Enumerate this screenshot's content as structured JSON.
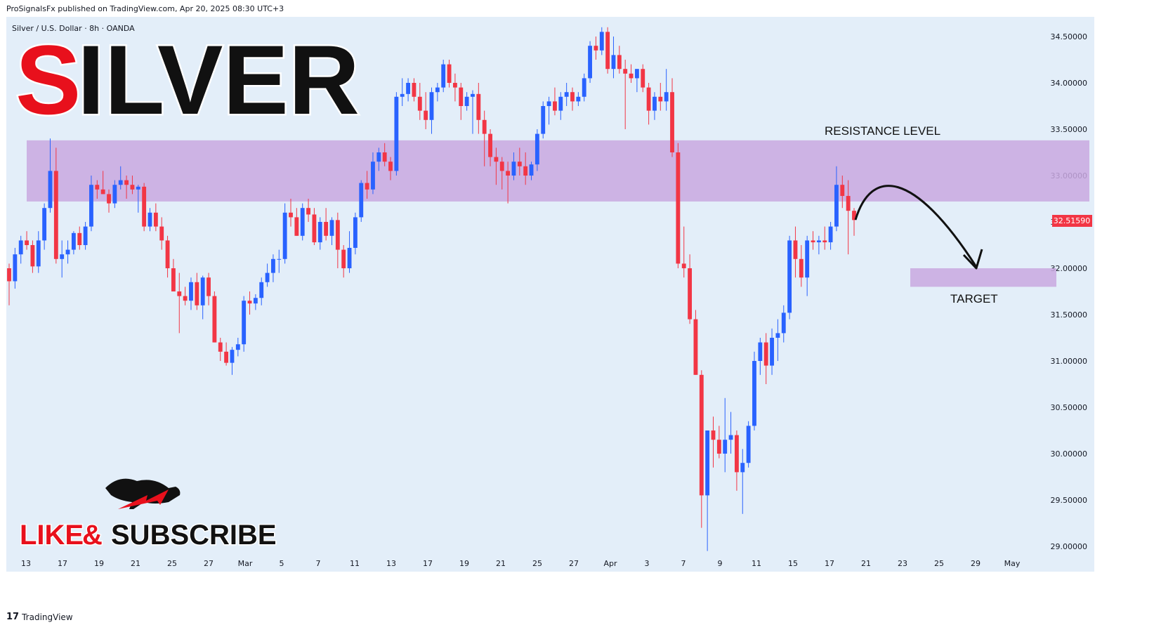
{
  "header": {
    "published": "ProSignalsFx published on TradingView.com, Apr 20, 2025 08:30 UTC+3"
  },
  "symbol_line": "Silver / U.S. Dollar · 8h · OANDA",
  "big_title": {
    "first_letter": "S",
    "rest": "ILVER"
  },
  "promo": {
    "like": "LIKE",
    "amp": "&",
    "subscribe": "SUBSCRIBE"
  },
  "footer": {
    "brand": "TradingView",
    "logo_glyph": "17"
  },
  "annotations": {
    "resistance": "RESISTANCE LEVEL",
    "target": "TARGET"
  },
  "colors": {
    "background": "#e3eef9",
    "up": "#2962ff",
    "down": "#f23645",
    "zone": "#c9a8e0",
    "price_label": "#f23645",
    "title_red": "#e8101c",
    "title_black": "#111111"
  },
  "chart_data": {
    "type": "candlestick",
    "title": "Silver / U.S. Dollar · 8h · OANDA",
    "y_ticks": [
      "34.50000",
      "34.00000",
      "33.50000",
      "33.00000",
      "32.50000",
      "32.00000",
      "31.50000",
      "31.00000",
      "30.50000",
      "30.00000",
      "29.50000",
      "29.00000"
    ],
    "ylim": [
      28.75,
      34.75
    ],
    "x_ticks": [
      "13",
      "17",
      "19",
      "21",
      "25",
      "27",
      "Mar",
      "5",
      "7",
      "11",
      "13",
      "17",
      "19",
      "21",
      "25",
      "27",
      "Apr",
      "3",
      "7",
      "9",
      "11",
      "15",
      "17",
      "21",
      "23",
      "25",
      "29",
      "May"
    ],
    "current_price": "32.51590",
    "resistance_zone": [
      32.72,
      33.38
    ],
    "target_zone": [
      31.8,
      32.0
    ],
    "candles": [
      [
        32.0,
        32.05,
        31.6,
        31.86
      ],
      [
        31.86,
        32.22,
        31.78,
        32.15
      ],
      [
        32.15,
        32.35,
        32.05,
        32.3
      ],
      [
        32.3,
        32.4,
        32.2,
        32.25
      ],
      [
        32.25,
        32.3,
        31.95,
        32.02
      ],
      [
        32.02,
        32.4,
        31.95,
        32.3
      ],
      [
        32.3,
        32.7,
        32.2,
        32.65
      ],
      [
        32.65,
        33.4,
        32.6,
        33.05
      ],
      [
        33.05,
        33.3,
        32.05,
        32.1
      ],
      [
        32.1,
        32.3,
        31.9,
        32.15
      ],
      [
        32.15,
        32.3,
        32.05,
        32.2
      ],
      [
        32.2,
        32.4,
        32.15,
        32.38
      ],
      [
        32.38,
        32.45,
        32.2,
        32.25
      ],
      [
        32.25,
        32.5,
        32.2,
        32.45
      ],
      [
        32.45,
        33.0,
        32.4,
        32.9
      ],
      [
        32.9,
        32.95,
        32.75,
        32.85
      ],
      [
        32.85,
        33.05,
        32.8,
        32.8
      ],
      [
        32.8,
        32.85,
        32.6,
        32.7
      ],
      [
        32.7,
        32.95,
        32.65,
        32.9
      ],
      [
        32.9,
        33.1,
        32.85,
        32.95
      ],
      [
        32.95,
        33.0,
        32.75,
        32.9
      ],
      [
        32.9,
        33.0,
        32.8,
        32.85
      ],
      [
        32.85,
        32.9,
        32.6,
        32.88
      ],
      [
        32.88,
        32.92,
        32.4,
        32.45
      ],
      [
        32.45,
        32.65,
        32.4,
        32.6
      ],
      [
        32.6,
        32.7,
        32.4,
        32.45
      ],
      [
        32.45,
        32.55,
        32.2,
        32.3
      ],
      [
        32.3,
        32.35,
        31.9,
        32.0
      ],
      [
        32.0,
        32.1,
        31.8,
        31.75
      ],
      [
        31.75,
        31.95,
        31.3,
        31.7
      ],
      [
        31.7,
        31.8,
        31.6,
        31.65
      ],
      [
        31.65,
        31.9,
        31.55,
        31.85
      ],
      [
        31.85,
        31.95,
        31.55,
        31.6
      ],
      [
        31.6,
        31.92,
        31.45,
        31.9
      ],
      [
        31.9,
        31.95,
        31.6,
        31.7
      ],
      [
        31.7,
        31.75,
        31.2,
        31.2
      ],
      [
        31.2,
        31.25,
        31.0,
        31.1
      ],
      [
        31.1,
        31.2,
        30.95,
        30.98
      ],
      [
        30.98,
        31.15,
        30.85,
        31.12
      ],
      [
        31.12,
        31.25,
        31.05,
        31.18
      ],
      [
        31.18,
        31.7,
        31.1,
        31.65
      ],
      [
        31.65,
        31.75,
        31.5,
        31.62
      ],
      [
        31.62,
        31.72,
        31.55,
        31.68
      ],
      [
        31.68,
        31.9,
        31.6,
        31.85
      ],
      [
        31.85,
        32.05,
        31.8,
        31.95
      ],
      [
        31.95,
        32.15,
        31.85,
        32.1
      ],
      [
        32.1,
        32.2,
        31.95,
        32.1
      ],
      [
        32.1,
        32.7,
        32.05,
        32.6
      ],
      [
        32.6,
        32.75,
        32.45,
        32.55
      ],
      [
        32.55,
        32.65,
        32.35,
        32.35
      ],
      [
        32.35,
        32.7,
        32.3,
        32.65
      ],
      [
        32.65,
        32.75,
        32.5,
        32.58
      ],
      [
        32.58,
        32.65,
        32.25,
        32.28
      ],
      [
        32.28,
        32.55,
        32.2,
        32.5
      ],
      [
        32.5,
        32.65,
        32.3,
        32.35
      ],
      [
        32.35,
        32.55,
        32.25,
        32.52
      ],
      [
        32.52,
        32.6,
        32.0,
        32.2
      ],
      [
        32.2,
        32.25,
        31.9,
        32.0
      ],
      [
        32.0,
        32.4,
        31.95,
        32.22
      ],
      [
        32.22,
        32.6,
        32.15,
        32.55
      ],
      [
        32.55,
        32.95,
        32.5,
        32.92
      ],
      [
        32.92,
        33.05,
        32.75,
        32.85
      ],
      [
        32.85,
        33.25,
        32.8,
        33.15
      ],
      [
        33.15,
        33.3,
        33.05,
        33.25
      ],
      [
        33.25,
        33.35,
        33.1,
        33.15
      ],
      [
        33.15,
        33.2,
        32.95,
        33.05
      ],
      [
        33.05,
        33.9,
        33.0,
        33.85
      ],
      [
        33.85,
        34.05,
        33.75,
        33.88
      ],
      [
        33.88,
        34.05,
        33.8,
        34.0
      ],
      [
        34.0,
        34.05,
        33.8,
        33.85
      ],
      [
        33.85,
        34.0,
        33.6,
        33.7
      ],
      [
        33.7,
        33.9,
        33.5,
        33.6
      ],
      [
        33.6,
        33.95,
        33.45,
        33.9
      ],
      [
        33.9,
        34.0,
        33.8,
        33.95
      ],
      [
        33.95,
        34.25,
        33.9,
        34.2
      ],
      [
        34.2,
        34.25,
        33.95,
        34.0
      ],
      [
        34.0,
        34.1,
        33.8,
        33.95
      ],
      [
        33.95,
        34.0,
        33.6,
        33.75
      ],
      [
        33.75,
        33.9,
        33.7,
        33.85
      ],
      [
        33.85,
        33.92,
        33.45,
        33.88
      ],
      [
        33.88,
        34.0,
        33.45,
        33.6
      ],
      [
        33.6,
        33.7,
        33.1,
        33.45
      ],
      [
        33.45,
        33.5,
        33.1,
        33.2
      ],
      [
        33.2,
        33.3,
        32.9,
        33.15
      ],
      [
        33.15,
        33.2,
        32.85,
        33.05
      ],
      [
        33.05,
        33.15,
        32.7,
        33.0
      ],
      [
        33.0,
        33.25,
        32.95,
        33.15
      ],
      [
        33.15,
        33.3,
        33.0,
        33.1
      ],
      [
        33.1,
        33.25,
        32.9,
        33.0
      ],
      [
        33.0,
        33.15,
        32.95,
        33.12
      ],
      [
        33.12,
        33.5,
        33.05,
        33.45
      ],
      [
        33.45,
        33.8,
        33.4,
        33.75
      ],
      [
        33.75,
        33.85,
        33.55,
        33.8
      ],
      [
        33.8,
        33.95,
        33.65,
        33.7
      ],
      [
        33.7,
        33.9,
        33.6,
        33.85
      ],
      [
        33.85,
        34.0,
        33.75,
        33.9
      ],
      [
        33.9,
        33.95,
        33.7,
        33.8
      ],
      [
        33.8,
        33.9,
        33.75,
        33.85
      ],
      [
        33.85,
        34.1,
        33.8,
        34.05
      ],
      [
        34.05,
        34.45,
        34.0,
        34.4
      ],
      [
        34.4,
        34.5,
        34.25,
        34.35
      ],
      [
        34.35,
        34.6,
        34.3,
        34.55
      ],
      [
        34.55,
        34.6,
        34.1,
        34.15
      ],
      [
        34.15,
        34.5,
        34.05,
        34.3
      ],
      [
        34.3,
        34.4,
        34.1,
        34.15
      ],
      [
        34.15,
        34.25,
        33.5,
        34.1
      ],
      [
        34.1,
        34.2,
        34.0,
        34.05
      ],
      [
        34.05,
        34.15,
        33.9,
        34.15
      ],
      [
        34.15,
        34.2,
        33.9,
        33.95
      ],
      [
        33.95,
        34.0,
        33.55,
        33.7
      ],
      [
        33.7,
        33.9,
        33.6,
        33.85
      ],
      [
        33.85,
        34.0,
        33.7,
        33.8
      ],
      [
        33.8,
        34.15,
        33.7,
        33.9
      ],
      [
        33.9,
        34.05,
        33.2,
        33.25
      ],
      [
        33.25,
        33.35,
        32.0,
        32.05
      ],
      [
        32.05,
        32.45,
        31.9,
        32.0
      ],
      [
        32.0,
        32.15,
        31.4,
        31.45
      ],
      [
        31.45,
        31.55,
        30.85,
        30.85
      ],
      [
        30.85,
        30.9,
        29.2,
        29.55
      ],
      [
        29.55,
        30.25,
        28.95,
        30.25
      ],
      [
        30.25,
        30.4,
        29.85,
        30.15
      ],
      [
        30.15,
        30.3,
        29.95,
        30.0
      ],
      [
        30.0,
        30.6,
        29.8,
        30.15
      ],
      [
        30.15,
        30.45,
        30.0,
        30.2
      ],
      [
        30.2,
        30.25,
        29.6,
        29.8
      ],
      [
        29.8,
        30.05,
        29.35,
        29.9
      ],
      [
        29.9,
        30.35,
        29.85,
        30.3
      ],
      [
        30.3,
        31.1,
        30.25,
        31.0
      ],
      [
        31.0,
        31.25,
        30.85,
        31.2
      ],
      [
        31.2,
        31.3,
        30.75,
        30.95
      ],
      [
        30.95,
        31.35,
        30.85,
        31.25
      ],
      [
        31.25,
        31.45,
        31.0,
        31.3
      ],
      [
        31.3,
        31.6,
        31.2,
        31.52
      ],
      [
        31.52,
        32.35,
        31.45,
        32.3
      ],
      [
        32.3,
        32.45,
        31.9,
        32.1
      ],
      [
        32.1,
        32.25,
        31.8,
        31.9
      ],
      [
        31.9,
        32.35,
        31.7,
        32.3
      ],
      [
        32.3,
        32.4,
        32.2,
        32.28
      ],
      [
        32.28,
        32.35,
        32.15,
        32.3
      ],
      [
        32.3,
        32.45,
        32.2,
        32.28
      ],
      [
        32.28,
        32.5,
        32.2,
        32.45
      ],
      [
        32.45,
        33.1,
        32.4,
        32.9
      ],
      [
        32.9,
        33.0,
        32.65,
        32.78
      ],
      [
        32.78,
        32.95,
        32.15,
        32.62
      ],
      [
        32.62,
        32.65,
        32.35,
        32.52
      ]
    ]
  }
}
